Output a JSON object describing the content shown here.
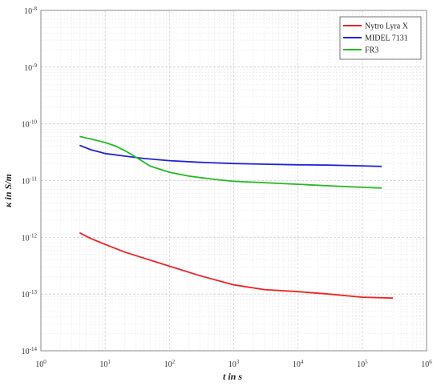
{
  "chart_data": {
    "type": "line",
    "xscale": "log",
    "yscale": "log",
    "xlim": [
      1,
      1000000
    ],
    "ylim": [
      1e-14,
      1e-08
    ],
    "xlabel": "t in s",
    "ylabel": "κ in S/m",
    "grid": true,
    "legend_position": "top-right",
    "x_ticks": [
      {
        "base": "10",
        "exp": "0",
        "value": 1
      },
      {
        "base": "10",
        "exp": "1",
        "value": 10
      },
      {
        "base": "10",
        "exp": "2",
        "value": 100
      },
      {
        "base": "10",
        "exp": "3",
        "value": 1000
      },
      {
        "base": "10",
        "exp": "4",
        "value": 10000
      },
      {
        "base": "10",
        "exp": "5",
        "value": 100000
      },
      {
        "base": "10",
        "exp": "6",
        "value": 1000000
      }
    ],
    "y_ticks": [
      {
        "base": "10",
        "exp": "-8",
        "value": 1e-08
      },
      {
        "base": "10",
        "exp": "-9",
        "value": 1e-09
      },
      {
        "base": "10",
        "exp": "-10",
        "value": 1e-10
      },
      {
        "base": "10",
        "exp": "-11",
        "value": 1e-11
      },
      {
        "base": "10",
        "exp": "-12",
        "value": 1e-12
      },
      {
        "base": "10",
        "exp": "-13",
        "value": 1e-13
      },
      {
        "base": "10",
        "exp": "-14",
        "value": 1e-14
      }
    ],
    "series": [
      {
        "name": "Nytro Lyra X",
        "color": "#ee2222",
        "x": [
          4,
          6,
          10,
          20,
          40,
          100,
          300,
          1000,
          3000,
          10000,
          30000,
          100000,
          300000
        ],
        "y": [
          1.2e-12,
          9.5e-13,
          7.5e-13,
          5.5e-13,
          4.3e-13,
          3.1e-13,
          2.1e-13,
          1.45e-13,
          1.2e-13,
          1.1e-13,
          1e-13,
          8.8e-14,
          8.5e-14
        ]
      },
      {
        "name": "MIDEL 7131",
        "color": "#2222dd",
        "x": [
          4,
          6,
          10,
          20,
          40,
          100,
          300,
          1000,
          3000,
          10000,
          30000,
          100000,
          200000
        ],
        "y": [
          4.2e-11,
          3.5e-11,
          3e-11,
          2.7e-11,
          2.45e-11,
          2.25e-11,
          2.1e-11,
          2e-11,
          1.95e-11,
          1.9e-11,
          1.87e-11,
          1.82e-11,
          1.78e-11
        ]
      },
      {
        "name": "FR3",
        "color": "#22bb22",
        "x": [
          4,
          6,
          10,
          15,
          20,
          30,
          50,
          100,
          200,
          500,
          1000,
          3000,
          10000,
          30000,
          100000,
          200000
        ],
        "y": [
          6e-11,
          5.4e-11,
          4.7e-11,
          4e-11,
          3.4e-11,
          2.6e-11,
          1.8e-11,
          1.4e-11,
          1.2e-11,
          1.05e-11,
          9.7e-12,
          9.2e-12,
          8.6e-12,
          8.1e-12,
          7.6e-12,
          7.4e-12
        ]
      }
    ]
  }
}
